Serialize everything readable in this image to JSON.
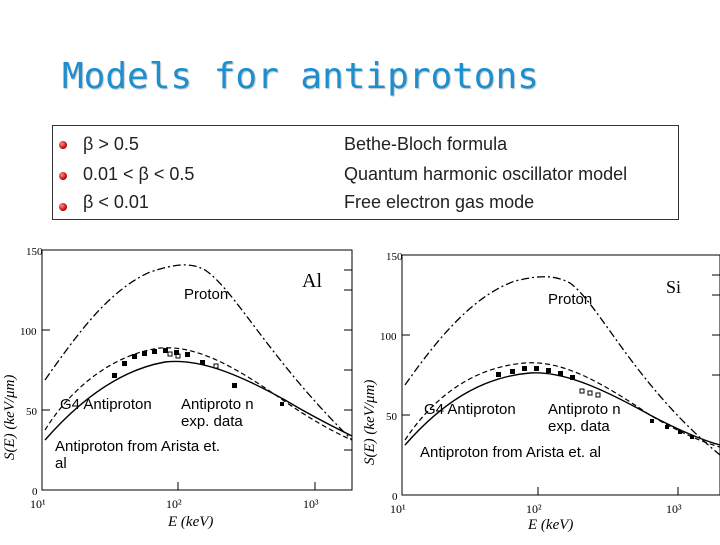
{
  "title": "Models for antiprotons",
  "models": [
    {
      "range": "β > 0.5",
      "model": "Bethe-Bloch formula"
    },
    {
      "range": "0.01 < β < 0.5",
      "model": "Quantum harmonic oscillator model"
    },
    {
      "range": "β < 0.01",
      "model": "Free electron gas mode"
    }
  ],
  "left_plot": {
    "material": "Al",
    "proton_label": "Proton",
    "g4_label": "G4 Antiproton",
    "exp_label": "Antiproto n exp. data",
    "arista_label": "Antiproton from Arista et. al",
    "ylabel": "S(E)  (keV/μm)",
    "xlabel": "E  (keV)",
    "yticks": [
      "0",
      "50",
      "100",
      "150"
    ],
    "xticks": [
      "10¹",
      "10²",
      "10³"
    ]
  },
  "right_plot": {
    "material": "Si",
    "proton_label": "Proton",
    "g4_label": "G4 Antiproton",
    "exp_label": "Antiproto n exp. data",
    "arista_label": "Antiproton from Arista et. al",
    "ylabel": "S(E)  (keV/μm)",
    "xlabel": "E  (keV)",
    "yticks": [
      "0",
      "50",
      "100",
      "150"
    ],
    "xticks": [
      "10¹",
      "10²",
      "10³"
    ]
  }
}
